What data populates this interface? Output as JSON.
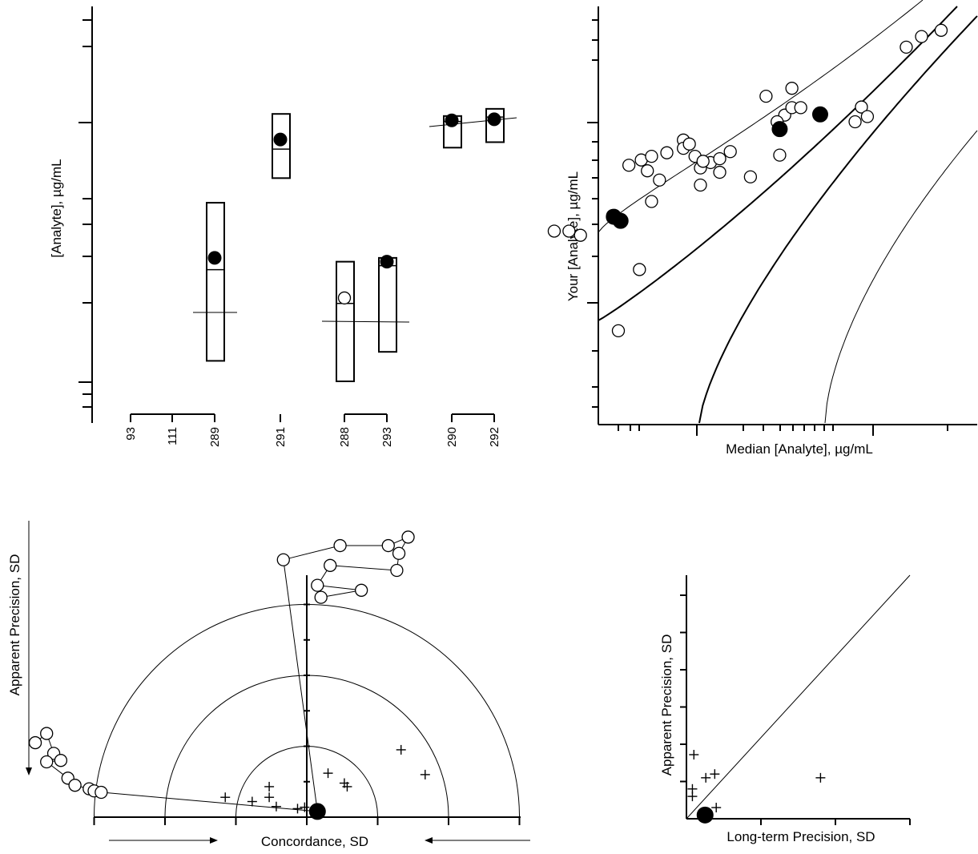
{
  "chart_data": [
    {
      "id": "panel-a",
      "type": "scatter",
      "ylabel": "[Analyte], µg/mL",
      "scale": "log",
      "groups": [
        {
          "labels": [
            "93",
            "111",
            "289"
          ]
        },
        {
          "labels": [
            "291"
          ]
        },
        {
          "labels": [
            "288",
            "293"
          ]
        },
        {
          "labels": [
            "290",
            "292"
          ]
        }
      ],
      "tick_labels": [
        "93",
        "111",
        "289",
        "291",
        "288",
        "293",
        "290",
        "292"
      ],
      "points_solid": [
        {
          "x": "289",
          "y": 0.3
        },
        {
          "x": "291",
          "y": 0.86
        },
        {
          "x": "293",
          "y": 0.29
        },
        {
          "x": "290",
          "y": 1.02
        },
        {
          "x": "292",
          "y": 1.03
        }
      ],
      "points_open": [
        {
          "x": "288",
          "y": 0.21
        }
      ],
      "boxes": [
        {
          "x": "289",
          "low": 0.12,
          "high": 0.49,
          "mid": 0.27
        },
        {
          "x": "291",
          "low": 0.61,
          "high": 1.08,
          "mid": 0.79
        },
        {
          "x": "288",
          "low": 0.1,
          "high": 0.29,
          "mid": 0.2
        },
        {
          "x": "293",
          "low": 0.13,
          "high": 0.3,
          "mid": 0.28
        },
        {
          "x": "290",
          "low": 0.8,
          "high": 1.06,
          "mid": 1.01
        },
        {
          "x": "292",
          "low": 0.84,
          "high": 1.13,
          "mid": 1.05
        }
      ]
    },
    {
      "id": "panel-b",
      "type": "scatter",
      "xlabel": "Median [Analyte], µg/mL",
      "ylabel": "Your [Analyte], µg/mL",
      "scale": "log-log",
      "xlim": [
        0.018,
        3.0
      ],
      "ylim": [
        0.068,
        3.0
      ],
      "points_open": [
        [
          0.056,
          0.25
        ],
        [
          0.064,
          0.25
        ],
        [
          0.071,
          0.237
        ],
        [
          0.095,
          0.305
        ],
        [
          0.121,
          0.153
        ],
        [
          0.1,
          0.07
        ],
        [
          0.11,
          0.58
        ],
        [
          0.123,
          0.62
        ],
        [
          0.13,
          0.54
        ],
        [
          0.135,
          0.365
        ],
        [
          0.155,
          0.68
        ],
        [
          0.145,
          0.48
        ],
        [
          0.18,
          0.8
        ],
        [
          0.21,
          0.45
        ],
        [
          0.25,
          0.53
        ],
        [
          0.275,
          0.69
        ],
        [
          0.21,
          0.56
        ],
        [
          0.18,
          0.72
        ],
        [
          0.135,
          0.65
        ],
        [
          0.2,
          0.65
        ],
        [
          0.19,
          0.76
        ],
        [
          0.23,
          0.6
        ],
        [
          0.215,
          0.61
        ],
        [
          0.25,
          0.63
        ],
        [
          0.33,
          0.5
        ],
        [
          0.43,
          0.66
        ],
        [
          0.45,
          1.1
        ],
        [
          0.48,
          1.21
        ],
        [
          0.52,
          1.21
        ],
        [
          0.42,
          1.01
        ],
        [
          0.38,
          1.4
        ],
        [
          0.48,
          1.55
        ],
        [
          0.9,
          1.22
        ],
        [
          0.85,
          1.01
        ],
        [
          0.95,
          1.08
        ],
        [
          1.35,
          2.62
        ],
        [
          1.55,
          3.0
        ],
        [
          1.85,
          3.25
        ]
      ],
      "points_solid": [
        [
          0.102,
          0.285
        ],
        [
          0.096,
          0.3
        ],
        [
          0.43,
          0.92
        ],
        [
          0.62,
          1.11
        ]
      ],
      "curves": [
        "identity-upper-band",
        "identity-lower-band",
        "upper-limit",
        "lower-limit"
      ]
    },
    {
      "id": "panel-c",
      "type": "scatter",
      "xlabel": "Concordance, SD",
      "ylabel": "Apparent Precision, SD",
      "rings": [
        1,
        2,
        3
      ],
      "xlim": [
        -3.0,
        3.0
      ],
      "points_plus": [
        [
          -1.15,
          0.28
        ],
        [
          -0.77,
          0.22
        ],
        [
          -0.53,
          0.43
        ],
        [
          -0.53,
          0.28
        ],
        [
          -0.43,
          0.15
        ],
        [
          -0.13,
          0.12
        ],
        [
          -0.03,
          0.14
        ],
        [
          0.3,
          0.62
        ],
        [
          0.53,
          0.48
        ],
        [
          0.57,
          0.43
        ],
        [
          1.33,
          0.95
        ],
        [
          1.67,
          0.6
        ]
      ],
      "point_solid": [
        0.15,
        0.08
      ],
      "points_open_upper": [
        [
          -0.33,
          3.63
        ],
        [
          0.47,
          3.83
        ],
        [
          1.15,
          3.83
        ],
        [
          1.43,
          3.95
        ],
        [
          1.3,
          3.72
        ],
        [
          1.27,
          3.48
        ],
        [
          0.33,
          3.55
        ],
        [
          0.15,
          3.27
        ],
        [
          0.77,
          3.2
        ],
        [
          0.2,
          3.1
        ]
      ],
      "points_open_left": [
        [
          -3.83,
          1.05
        ],
        [
          -3.67,
          1.18
        ],
        [
          -3.57,
          0.9
        ],
        [
          -3.47,
          0.8
        ],
        [
          -3.67,
          0.78
        ],
        [
          -3.37,
          0.55
        ],
        [
          -3.27,
          0.45
        ],
        [
          -3.07,
          0.4
        ],
        [
          -3.0,
          0.37
        ],
        [
          -2.9,
          0.35
        ]
      ]
    },
    {
      "id": "panel-d",
      "type": "scatter",
      "xlabel": "Long-term Precision, SD",
      "ylabel": "Apparent Precision, SD",
      "xlim": [
        0,
        3.0
      ],
      "ylim": [
        0,
        3.0
      ],
      "points_plus": [
        [
          0.1,
          0.86
        ],
        [
          0.26,
          0.55
        ],
        [
          0.38,
          0.6
        ],
        [
          0.08,
          0.4
        ],
        [
          0.08,
          0.3
        ],
        [
          0.4,
          0.15
        ],
        [
          1.8,
          0.55
        ]
      ],
      "point_solid": [
        0.25,
        0.05
      ]
    }
  ]
}
